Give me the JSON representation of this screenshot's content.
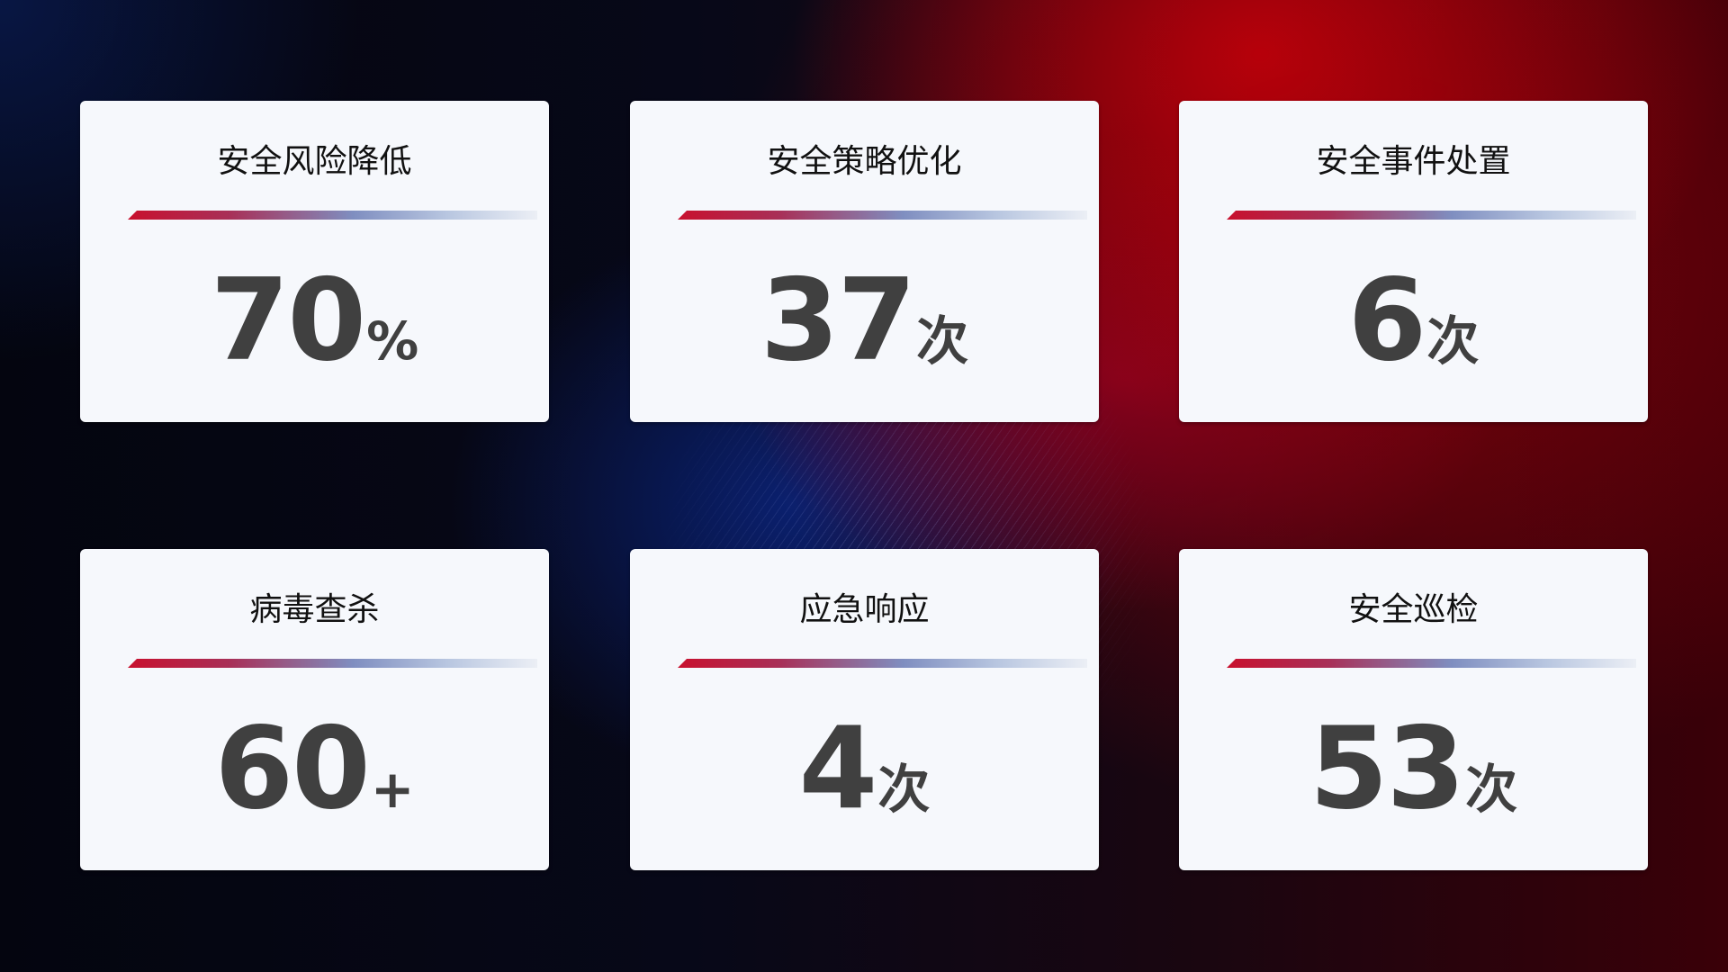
{
  "cards": [
    {
      "title": "安全风险降低",
      "value": "70",
      "unit": "%"
    },
    {
      "title": "安全策略优化",
      "value": "37",
      "unit": "次"
    },
    {
      "title": "安全事件处置",
      "value": "6",
      "unit": "次"
    },
    {
      "title": "病毒查杀",
      "value": "60",
      "unit": "+"
    },
    {
      "title": "应急响应",
      "value": "4",
      "unit": "次"
    },
    {
      "title": "安全巡检",
      "value": "53",
      "unit": "次"
    }
  ],
  "colors": {
    "accent_red": "#c8102e",
    "accent_blue": "#7f8ec0",
    "card_bg": "#f6f8fc",
    "value_text": "#404040"
  }
}
